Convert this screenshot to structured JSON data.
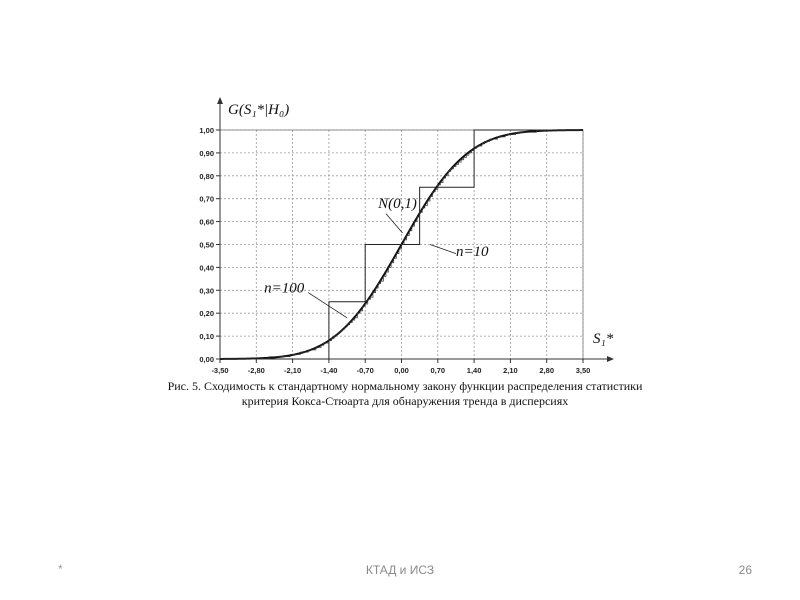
{
  "chart_data": {
    "type": "line",
    "ylabel": "G(S₁*|H₀)",
    "xlabel": "S₁*",
    "xlim": [
      -3.5,
      3.5
    ],
    "ylim": [
      0,
      1
    ],
    "x_ticks": [
      "-3,50",
      "-2,80",
      "-2,10",
      "-1,40",
      "-0,70",
      "0,00",
      "0,70",
      "1,40",
      "2,10",
      "2,80",
      "3,50"
    ],
    "y_ticks": [
      "0,00",
      "0,10",
      "0,20",
      "0,30",
      "0,40",
      "0,50",
      "0,60",
      "0,70",
      "0,80",
      "0,90",
      "1,00"
    ],
    "grid": true,
    "series": [
      {
        "name": "N(0,1)",
        "kind": "normal_cdf"
      },
      {
        "name": "n=10",
        "kind": "step",
        "x": [
          -3.5,
          -1.4,
          -1.4,
          -0.7,
          -0.7,
          0.35,
          0.35,
          1.4,
          1.4,
          3.5
        ],
        "y": [
          0,
          0,
          0.25,
          0.25,
          0.5,
          0.5,
          0.75,
          0.75,
          1.0,
          1.0
        ]
      },
      {
        "name": "n=100",
        "kind": "step_fine"
      }
    ],
    "annotations": [
      {
        "text": "N(0,1)",
        "x": -0.45,
        "y": 0.66
      },
      {
        "text": "n=10",
        "x": 1.05,
        "y": 0.45
      },
      {
        "text": "n=100",
        "x": -2.65,
        "y": 0.29
      }
    ]
  },
  "caption": {
    "line1": "Рис. 5. Сходимость к стандартному нормальному закону функции распределения статистики",
    "line2": "критерия Кокса-Стюарта для обнаружения тренда в дисперсиях"
  },
  "footer": {
    "left": "*",
    "center": "КТАД и ИСЗ",
    "page": "26"
  }
}
